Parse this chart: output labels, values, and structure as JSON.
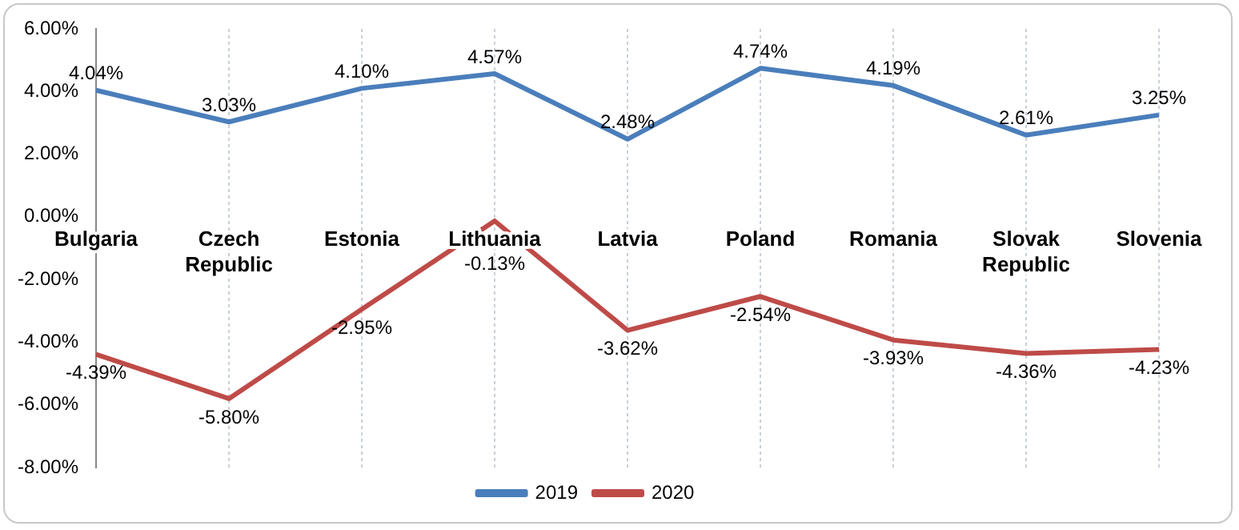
{
  "chart_data": {
    "type": "line",
    "categories": [
      "Bulgaria",
      "Czech Republic",
      "Estonia",
      "Lithuania",
      "Latvia",
      "Poland",
      "Romania",
      "Slovak Republic",
      "Slovenia"
    ],
    "series": [
      {
        "name": "2019",
        "color": "#4a7ebb",
        "values": [
          4.04,
          3.03,
          4.1,
          4.57,
          2.48,
          4.74,
          4.19,
          2.61,
          3.25
        ],
        "value_labels": [
          "4.04%",
          "3.03%",
          "4.10%",
          "4.57%",
          "2.48%",
          "4.74%",
          "4.19%",
          "2.61%",
          "3.25%"
        ]
      },
      {
        "name": "2020",
        "color": "#be4b48",
        "values": [
          -4.39,
          -5.8,
          -2.95,
          -0.13,
          -3.62,
          -2.54,
          -3.93,
          -4.36,
          -4.23
        ],
        "value_labels": [
          "-4.39%",
          "-5.80%",
          "-2.95%",
          "-0.13%",
          "-3.62%",
          "-2.54%",
          "-3.93%",
          "-4.36%",
          "-4.23%"
        ]
      }
    ],
    "ylim": [
      -8,
      6
    ],
    "yticks": [
      {
        "value": -8,
        "label": "-8.00%"
      },
      {
        "value": -6,
        "label": "-6.00%"
      },
      {
        "value": -4,
        "label": "-4.00%"
      },
      {
        "value": -2,
        "label": "-2.00%"
      },
      {
        "value": 0,
        "label": "0.00%"
      },
      {
        "value": 2,
        "label": "2.00%"
      },
      {
        "value": 4,
        "label": "4.00%"
      },
      {
        "value": 6,
        "label": "6.00%"
      }
    ],
    "grid": "x",
    "legend": "bottom",
    "marker": "none",
    "line_style": "solid"
  }
}
